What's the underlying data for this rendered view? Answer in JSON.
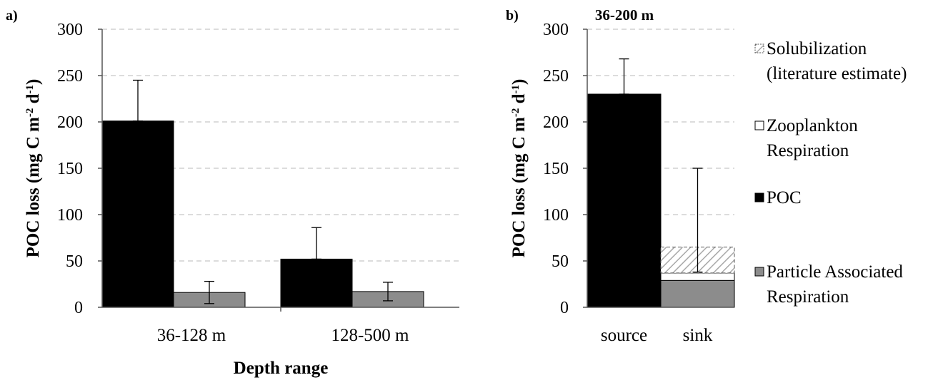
{
  "colors": {
    "poc": "#000000",
    "particle_respiration": "#8c8c8c",
    "zooplankton": "#ffffff",
    "solubilization_stroke": "#555555",
    "grid": "#c8c8c8"
  },
  "chart_data": [
    {
      "type": "bar",
      "panel_label": "a)",
      "title": "",
      "xlabel": "Depth range",
      "ylabel_main": "POC loss (mg C m",
      "ylabel_sup1": "-2",
      "ylabel_mid": " d",
      "ylabel_sup2": "-1",
      "ylabel_end": ")",
      "ylim": [
        0,
        300
      ],
      "yticks": [
        "0",
        "50",
        "100",
        "150",
        "200",
        "250",
        "300"
      ],
      "grid": true,
      "categories": [
        "36-128 m",
        "128-500 m"
      ],
      "series": [
        {
          "key": "poc",
          "values": [
            201,
            52
          ],
          "error_upper": [
            245,
            86
          ],
          "error_lower": [
            null,
            null
          ]
        },
        {
          "key": "particle_respiration",
          "values": [
            16,
            17
          ],
          "error_upper": [
            28,
            27
          ],
          "error_lower": [
            4,
            7
          ]
        }
      ]
    },
    {
      "type": "bar",
      "panel_label": "b)",
      "title": "36-200 m",
      "xlabel": "",
      "ylabel_main": "POC loss (mg C m",
      "ylabel_sup1": "-2",
      "ylabel_mid": " d",
      "ylabel_sup2": "-1",
      "ylabel_end": ")",
      "ylim": [
        0,
        300
      ],
      "yticks": [
        "0",
        "50",
        "100",
        "150",
        "200",
        "250",
        "300"
      ],
      "grid": true,
      "categories": [
        "source",
        "sink"
      ],
      "stacked": true,
      "bars": [
        {
          "category": "source",
          "segments": [
            {
              "key": "poc",
              "value": 230
            }
          ],
          "error_upper": 268
        },
        {
          "category": "sink",
          "segments": [
            {
              "key": "particle_respiration",
              "value": 29
            },
            {
              "key": "zooplankton",
              "value": 8
            },
            {
              "key": "solubilization",
              "value": 28
            }
          ],
          "error_upper": 150,
          "error_lower": 38
        }
      ],
      "legend": {
        "position": "right",
        "entries": [
          {
            "key": "solubilization",
            "line1": "Solubilization",
            "line2": "(literature estimate)"
          },
          {
            "key": "zooplankton",
            "line1": "Zooplankton",
            "line2": "Respiration"
          },
          {
            "key": "poc",
            "line1": "POC",
            "line2": ""
          },
          {
            "key": "particle_respiration",
            "line1": "Particle Associated",
            "line2": "Respiration"
          }
        ]
      }
    }
  ]
}
